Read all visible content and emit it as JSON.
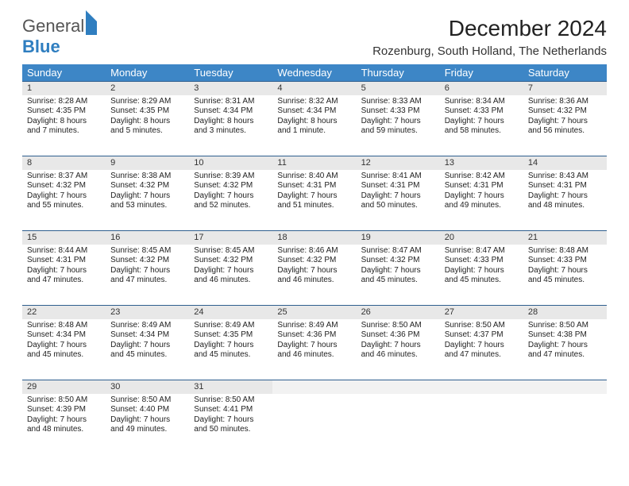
{
  "logo": {
    "line1": "General",
    "line2": "Blue"
  },
  "title": "December 2024",
  "location": "Rozenburg, South Holland, The Netherlands",
  "headers": [
    "Sunday",
    "Monday",
    "Tuesday",
    "Wednesday",
    "Thursday",
    "Friday",
    "Saturday"
  ],
  "colors": {
    "header_bg": "#3d86c6",
    "daynum_bg": "#e8e8e8",
    "rule": "#2f5f8f",
    "logo_blue": "#2f7ec0"
  },
  "font": {
    "body_size": 10,
    "header_size": 13,
    "title_size": 28
  },
  "weeks": [
    [
      {
        "n": "1",
        "sunrise": "Sunrise: 8:28 AM",
        "sunset": "Sunset: 4:35 PM",
        "day1": "Daylight: 8 hours",
        "day2": "and 7 minutes."
      },
      {
        "n": "2",
        "sunrise": "Sunrise: 8:29 AM",
        "sunset": "Sunset: 4:35 PM",
        "day1": "Daylight: 8 hours",
        "day2": "and 5 minutes."
      },
      {
        "n": "3",
        "sunrise": "Sunrise: 8:31 AM",
        "sunset": "Sunset: 4:34 PM",
        "day1": "Daylight: 8 hours",
        "day2": "and 3 minutes."
      },
      {
        "n": "4",
        "sunrise": "Sunrise: 8:32 AM",
        "sunset": "Sunset: 4:34 PM",
        "day1": "Daylight: 8 hours",
        "day2": "and 1 minute."
      },
      {
        "n": "5",
        "sunrise": "Sunrise: 8:33 AM",
        "sunset": "Sunset: 4:33 PM",
        "day1": "Daylight: 7 hours",
        "day2": "and 59 minutes."
      },
      {
        "n": "6",
        "sunrise": "Sunrise: 8:34 AM",
        "sunset": "Sunset: 4:33 PM",
        "day1": "Daylight: 7 hours",
        "day2": "and 58 minutes."
      },
      {
        "n": "7",
        "sunrise": "Sunrise: 8:36 AM",
        "sunset": "Sunset: 4:32 PM",
        "day1": "Daylight: 7 hours",
        "day2": "and 56 minutes."
      }
    ],
    [
      {
        "n": "8",
        "sunrise": "Sunrise: 8:37 AM",
        "sunset": "Sunset: 4:32 PM",
        "day1": "Daylight: 7 hours",
        "day2": "and 55 minutes."
      },
      {
        "n": "9",
        "sunrise": "Sunrise: 8:38 AM",
        "sunset": "Sunset: 4:32 PM",
        "day1": "Daylight: 7 hours",
        "day2": "and 53 minutes."
      },
      {
        "n": "10",
        "sunrise": "Sunrise: 8:39 AM",
        "sunset": "Sunset: 4:32 PM",
        "day1": "Daylight: 7 hours",
        "day2": "and 52 minutes."
      },
      {
        "n": "11",
        "sunrise": "Sunrise: 8:40 AM",
        "sunset": "Sunset: 4:31 PM",
        "day1": "Daylight: 7 hours",
        "day2": "and 51 minutes."
      },
      {
        "n": "12",
        "sunrise": "Sunrise: 8:41 AM",
        "sunset": "Sunset: 4:31 PM",
        "day1": "Daylight: 7 hours",
        "day2": "and 50 minutes."
      },
      {
        "n": "13",
        "sunrise": "Sunrise: 8:42 AM",
        "sunset": "Sunset: 4:31 PM",
        "day1": "Daylight: 7 hours",
        "day2": "and 49 minutes."
      },
      {
        "n": "14",
        "sunrise": "Sunrise: 8:43 AM",
        "sunset": "Sunset: 4:31 PM",
        "day1": "Daylight: 7 hours",
        "day2": "and 48 minutes."
      }
    ],
    [
      {
        "n": "15",
        "sunrise": "Sunrise: 8:44 AM",
        "sunset": "Sunset: 4:31 PM",
        "day1": "Daylight: 7 hours",
        "day2": "and 47 minutes."
      },
      {
        "n": "16",
        "sunrise": "Sunrise: 8:45 AM",
        "sunset": "Sunset: 4:32 PM",
        "day1": "Daylight: 7 hours",
        "day2": "and 47 minutes."
      },
      {
        "n": "17",
        "sunrise": "Sunrise: 8:45 AM",
        "sunset": "Sunset: 4:32 PM",
        "day1": "Daylight: 7 hours",
        "day2": "and 46 minutes."
      },
      {
        "n": "18",
        "sunrise": "Sunrise: 8:46 AM",
        "sunset": "Sunset: 4:32 PM",
        "day1": "Daylight: 7 hours",
        "day2": "and 46 minutes."
      },
      {
        "n": "19",
        "sunrise": "Sunrise: 8:47 AM",
        "sunset": "Sunset: 4:32 PM",
        "day1": "Daylight: 7 hours",
        "day2": "and 45 minutes."
      },
      {
        "n": "20",
        "sunrise": "Sunrise: 8:47 AM",
        "sunset": "Sunset: 4:33 PM",
        "day1": "Daylight: 7 hours",
        "day2": "and 45 minutes."
      },
      {
        "n": "21",
        "sunrise": "Sunrise: 8:48 AM",
        "sunset": "Sunset: 4:33 PM",
        "day1": "Daylight: 7 hours",
        "day2": "and 45 minutes."
      }
    ],
    [
      {
        "n": "22",
        "sunrise": "Sunrise: 8:48 AM",
        "sunset": "Sunset: 4:34 PM",
        "day1": "Daylight: 7 hours",
        "day2": "and 45 minutes."
      },
      {
        "n": "23",
        "sunrise": "Sunrise: 8:49 AM",
        "sunset": "Sunset: 4:34 PM",
        "day1": "Daylight: 7 hours",
        "day2": "and 45 minutes."
      },
      {
        "n": "24",
        "sunrise": "Sunrise: 8:49 AM",
        "sunset": "Sunset: 4:35 PM",
        "day1": "Daylight: 7 hours",
        "day2": "and 45 minutes."
      },
      {
        "n": "25",
        "sunrise": "Sunrise: 8:49 AM",
        "sunset": "Sunset: 4:36 PM",
        "day1": "Daylight: 7 hours",
        "day2": "and 46 minutes."
      },
      {
        "n": "26",
        "sunrise": "Sunrise: 8:50 AM",
        "sunset": "Sunset: 4:36 PM",
        "day1": "Daylight: 7 hours",
        "day2": "and 46 minutes."
      },
      {
        "n": "27",
        "sunrise": "Sunrise: 8:50 AM",
        "sunset": "Sunset: 4:37 PM",
        "day1": "Daylight: 7 hours",
        "day2": "and 47 minutes."
      },
      {
        "n": "28",
        "sunrise": "Sunrise: 8:50 AM",
        "sunset": "Sunset: 4:38 PM",
        "day1": "Daylight: 7 hours",
        "day2": "and 47 minutes."
      }
    ],
    [
      {
        "n": "29",
        "sunrise": "Sunrise: 8:50 AM",
        "sunset": "Sunset: 4:39 PM",
        "day1": "Daylight: 7 hours",
        "day2": "and 48 minutes."
      },
      {
        "n": "30",
        "sunrise": "Sunrise: 8:50 AM",
        "sunset": "Sunset: 4:40 PM",
        "day1": "Daylight: 7 hours",
        "day2": "and 49 minutes."
      },
      {
        "n": "31",
        "sunrise": "Sunrise: 8:50 AM",
        "sunset": "Sunset: 4:41 PM",
        "day1": "Daylight: 7 hours",
        "day2": "and 50 minutes."
      },
      {
        "empty": true
      },
      {
        "empty": true
      },
      {
        "empty": true
      },
      {
        "empty": true
      }
    ]
  ]
}
